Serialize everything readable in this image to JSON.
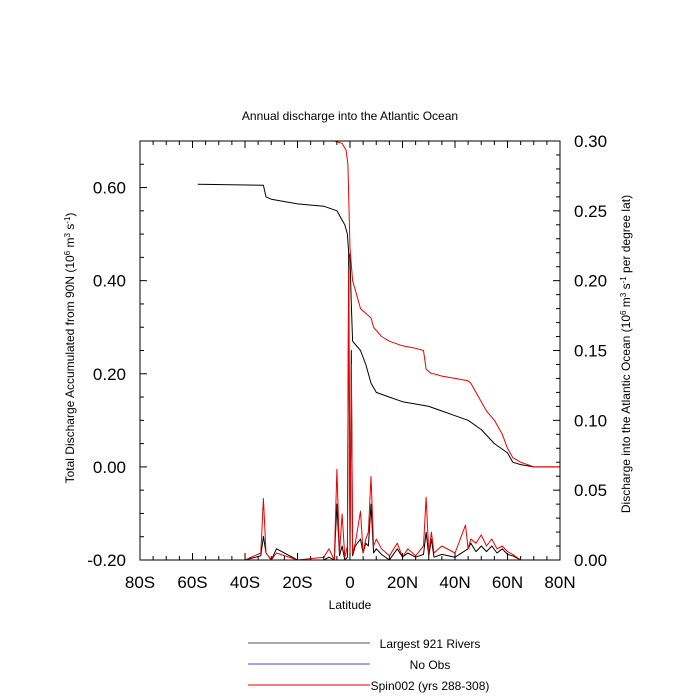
{
  "chart_data": {
    "type": "line",
    "title": "Annual discharge into the Atlantic Ocean",
    "xlabel": "Latitude",
    "ylabel_left": {
      "base": "Total Discharge Accumulated from 90N (10",
      "sup1": "6",
      "mid": " m",
      "sup2": "3",
      "mid2": " s",
      "sup3": "-1",
      "end": ")"
    },
    "ylabel_right": {
      "base": "Discharge into the Atlantic Ocean (10",
      "sup1": "6",
      "mid": " m",
      "sup2": "3",
      "mid2": " s",
      "sup3": "-1",
      "end": " per degree lat)"
    },
    "xlim": [
      -80,
      80
    ],
    "ylim_left": [
      -0.2,
      0.7
    ],
    "ylim_right": [
      0.0,
      0.3
    ],
    "x_ticks": [
      {
        "value": -80,
        "label": "80S"
      },
      {
        "value": -60,
        "label": "60S"
      },
      {
        "value": -40,
        "label": "40S"
      },
      {
        "value": -20,
        "label": "20S"
      },
      {
        "value": 0,
        "label": "0"
      },
      {
        "value": 20,
        "label": "20N"
      },
      {
        "value": 40,
        "label": "40N"
      },
      {
        "value": 60,
        "label": "60N"
      },
      {
        "value": 80,
        "label": "80N"
      }
    ],
    "y_left_ticks": [
      {
        "value": -0.2,
        "label": "-0.20"
      },
      {
        "value": 0.0,
        "label": "0.00"
      },
      {
        "value": 0.2,
        "label": "0.20"
      },
      {
        "value": 0.4,
        "label": "0.40"
      },
      {
        "value": 0.6,
        "label": "0.60"
      }
    ],
    "y_right_ticks": [
      {
        "value": 0.0,
        "label": "0.00"
      },
      {
        "value": 0.05,
        "label": "0.05"
      },
      {
        "value": 0.1,
        "label": "0.10"
      },
      {
        "value": 0.15,
        "label": "0.15"
      },
      {
        "value": 0.2,
        "label": "0.20"
      },
      {
        "value": 0.25,
        "label": "0.25"
      },
      {
        "value": 0.3,
        "label": "0.30"
      }
    ],
    "series": [
      {
        "name": "Largest 921 Rivers",
        "color": "#000000",
        "axis": "left",
        "x": [
          -58,
          -33,
          -32,
          -30,
          -20,
          -10,
          -5,
          -3,
          -2,
          -1,
          -0.5,
          0,
          0.5,
          1,
          4,
          6,
          8,
          10,
          15,
          20,
          25,
          30,
          35,
          40,
          45,
          50,
          55,
          60,
          62,
          65,
          70,
          80
        ],
        "y": [
          0.607,
          0.605,
          0.58,
          0.575,
          0.565,
          0.56,
          0.55,
          0.53,
          0.52,
          0.5,
          0.46,
          0.45,
          0.35,
          0.27,
          0.25,
          0.22,
          0.18,
          0.16,
          0.15,
          0.14,
          0.135,
          0.13,
          0.12,
          0.11,
          0.1,
          0.08,
          0.05,
          0.03,
          0.01,
          0.005,
          0.0,
          0.0
        ]
      },
      {
        "name": "Largest 921 Rivers",
        "color": "#000000",
        "axis": "right",
        "x": [
          -70,
          -40,
          -34,
          -33,
          -32,
          -30,
          -28,
          -20,
          -10,
          -8,
          -6,
          -5,
          -4,
          -3,
          -2,
          -1,
          -0.5,
          0,
          0.5,
          1,
          2,
          4,
          5,
          6,
          7,
          8,
          9,
          10,
          12,
          15,
          18,
          20,
          22,
          25,
          28,
          29,
          30,
          31,
          32,
          35,
          40,
          45,
          46,
          48,
          50,
          52,
          54,
          56,
          58,
          60,
          62,
          65,
          70,
          80
        ],
        "y": [
          0,
          0,
          0.003,
          0.017,
          0.005,
          0.0,
          0.008,
          0.0,
          0.0,
          0.002,
          0.0,
          0.04,
          0.003,
          0.01,
          0.0,
          0.002,
          0.22,
          0.002,
          0.15,
          0.003,
          0.01,
          0.015,
          0.005,
          0.012,
          0.01,
          0.04,
          0.005,
          0.008,
          0.004,
          0.0,
          0.008,
          0.002,
          0.005,
          0.002,
          0.004,
          0.02,
          0.003,
          0.015,
          0.002,
          0.004,
          0.002,
          0.008,
          0.012,
          0.006,
          0.01,
          0.006,
          0.01,
          0.005,
          0.008,
          0.004,
          0.003,
          0.0,
          0.0,
          0.0
        ]
      },
      {
        "name": "No Obs",
        "color": "#4444ee",
        "axis": "left",
        "x": [],
        "y": []
      },
      {
        "name": "Spin002 (yrs 288-308)",
        "color": "#ee0000",
        "axis": "left",
        "x": [
          -6,
          -3,
          -1.5,
          -0.8,
          0,
          1,
          2,
          3,
          4,
          6,
          8,
          9,
          12,
          15,
          20,
          25,
          28,
          29,
          30,
          31,
          32,
          35,
          40,
          45,
          46,
          48,
          50,
          52,
          55,
          58,
          60,
          62,
          65,
          70,
          80
        ],
        "y": [
          0.7,
          0.695,
          0.68,
          0.65,
          0.47,
          0.4,
          0.38,
          0.36,
          0.34,
          0.33,
          0.32,
          0.3,
          0.28,
          0.27,
          0.26,
          0.255,
          0.25,
          0.21,
          0.205,
          0.2,
          0.2,
          0.195,
          0.19,
          0.185,
          0.18,
          0.16,
          0.14,
          0.12,
          0.1,
          0.07,
          0.04,
          0.02,
          0.01,
          0.0,
          0.0
        ]
      },
      {
        "name": "Spin002 (yrs 288-308)",
        "color": "#ee0000",
        "axis": "right",
        "x": [
          -70,
          -40,
          -34,
          -33,
          -32,
          -30,
          -28,
          -20,
          -10,
          -8,
          -6,
          -5,
          -4,
          -3,
          -2,
          -1,
          -0.5,
          0,
          0.5,
          1,
          2,
          4,
          5,
          6,
          7,
          8,
          9,
          10,
          12,
          15,
          18,
          20,
          22,
          25,
          28,
          29,
          30,
          31,
          32,
          35,
          40,
          44,
          45,
          46,
          48,
          50,
          52,
          54,
          56,
          58,
          60,
          62,
          65,
          70,
          80
        ],
        "y": [
          0,
          0,
          0.005,
          0.044,
          0.005,
          0.0,
          0.005,
          0.0,
          0.002,
          0.008,
          0.0,
          0.065,
          0.005,
          0.033,
          0.002,
          0.01,
          0.21,
          0.003,
          0.14,
          0.005,
          0.012,
          0.035,
          0.005,
          0.015,
          0.02,
          0.06,
          0.01,
          0.015,
          0.008,
          0.003,
          0.012,
          0.002,
          0.008,
          0.003,
          0.01,
          0.045,
          0.005,
          0.02,
          0.005,
          0.01,
          0.005,
          0.025,
          0.008,
          0.015,
          0.012,
          0.018,
          0.01,
          0.015,
          0.008,
          0.01,
          0.006,
          0.004,
          0.0,
          0.0,
          0.0
        ]
      }
    ],
    "legend": {
      "placement": "bottom",
      "entries": [
        {
          "label": "Largest 921 Rivers",
          "color": "#555555"
        },
        {
          "label": "No Obs",
          "color": "#4444ee"
        },
        {
          "label": "Spin002 (yrs 288-308)",
          "color": "#ee0000"
        }
      ]
    }
  }
}
